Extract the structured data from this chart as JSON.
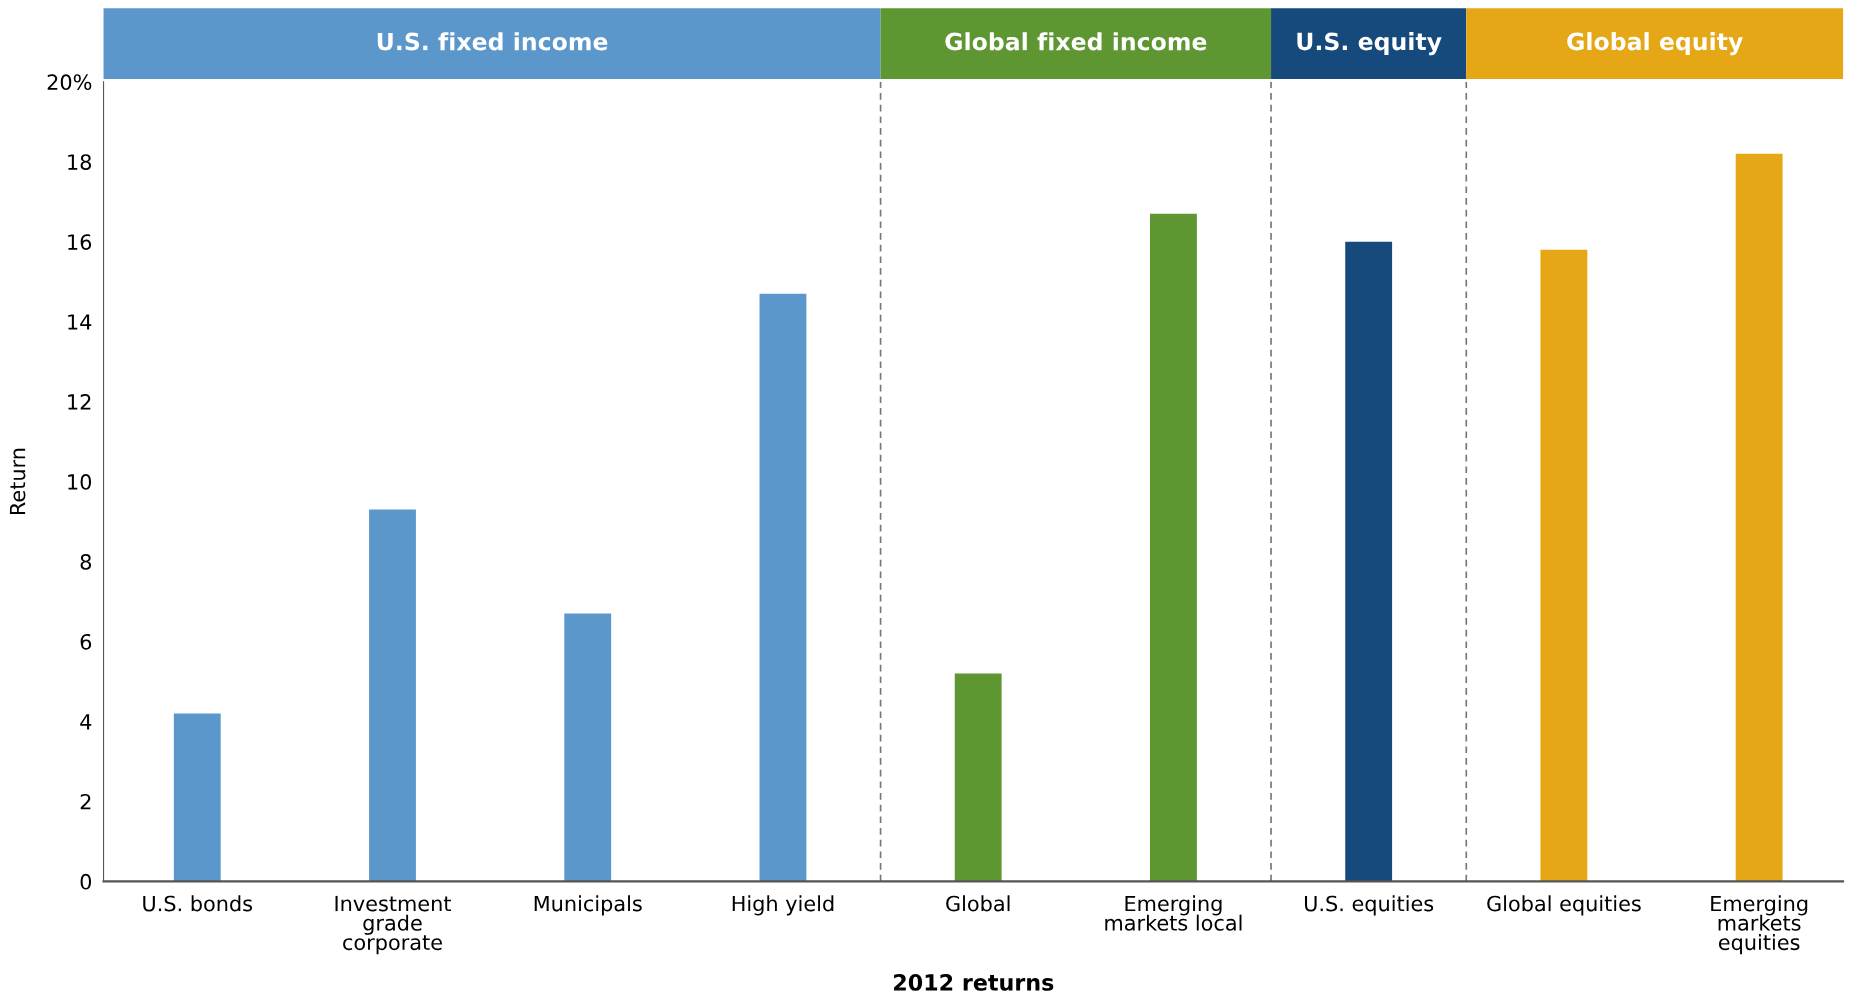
{
  "chart_data": {
    "type": "bar",
    "xlabel": "2012 returns",
    "ylabel": "Return",
    "categories": [
      "U.S. bonds",
      "Investment\ngrade\ncorporate",
      "Municipals",
      "High yield",
      "Global",
      "Emerging\nmarkets local",
      "U.S. equities",
      "Global equities",
      "Emerging\nmarkets\nequities"
    ],
    "values": [
      4.2,
      9.3,
      6.7,
      14.7,
      5.2,
      16.7,
      16.0,
      15.8,
      18.2
    ],
    "colors": [
      "#5b97cb",
      "#5b97cb",
      "#5b97cb",
      "#5b97cb",
      "#5e9632",
      "#5e9632",
      "#174a7c",
      "#e5a716",
      "#e5a716"
    ],
    "ylim": [
      0,
      20
    ],
    "yticks": [
      0,
      2,
      4,
      6,
      8,
      10,
      12,
      14,
      16,
      18,
      {
        "value": 20,
        "label": "20%"
      }
    ],
    "grid": false,
    "annotations": [
      "U.S. fixed income",
      "Global fixed income",
      "U.S. equity",
      "Global equity"
    ]
  }
}
